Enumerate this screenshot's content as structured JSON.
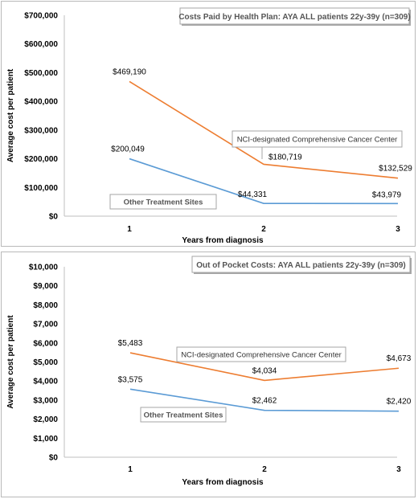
{
  "chart_data": [
    {
      "type": "line",
      "title": "Costs Paid by Health Plan: AYA ALL patients 22y-39y (n=309)",
      "xlabel": "Years from diagnosis",
      "ylabel": "Average  cost per patient",
      "categories": [
        "1",
        "2",
        "3"
      ],
      "ylim": [
        0,
        700000
      ],
      "yticks": [
        "$0",
        "$100,000",
        "$200,000",
        "$300,000",
        "$400,000",
        "$500,000",
        "$600,000",
        "$700,000"
      ],
      "grid": false,
      "series": [
        {
          "name": "NCI-designated Comprehensive Cancer Center",
          "values": [
            469190,
            180719,
            132529
          ],
          "labels": [
            "$469,190",
            "$180,719",
            "$132,529"
          ],
          "color": "#ed7d31"
        },
        {
          "name": "Other Treatment Sites",
          "values": [
            200049,
            44331,
            43979
          ],
          "labels": [
            "$200,049",
            "$44,331",
            "$43,979"
          ],
          "color": "#5b9bd5"
        }
      ]
    },
    {
      "type": "line",
      "title": "Out of Pocket Costs: AYA ALL patients 22y-39y (n=309)",
      "xlabel": "Years from diagnosis",
      "ylabel": "Average cost per patient",
      "categories": [
        "1",
        "2",
        "3"
      ],
      "ylim": [
        0,
        10000
      ],
      "yticks": [
        "$0",
        "$1,000",
        "$2,000",
        "$3,000",
        "$4,000",
        "$5,000",
        "$6,000",
        "$7,000",
        "$8,000",
        "$9,000",
        "$10,000"
      ],
      "grid": false,
      "series": [
        {
          "name": "NCI-designated Comprehensive Cancer Center",
          "values": [
            5483,
            4034,
            4673
          ],
          "labels": [
            "$5,483",
            "$4,034",
            "$4,673"
          ],
          "color": "#ed7d31"
        },
        {
          "name": "Other Treatment Sites",
          "values": [
            3575,
            2462,
            2420
          ],
          "labels": [
            "$3,575",
            "$2,462",
            "$2,420"
          ],
          "color": "#5b9bd5"
        }
      ]
    }
  ]
}
